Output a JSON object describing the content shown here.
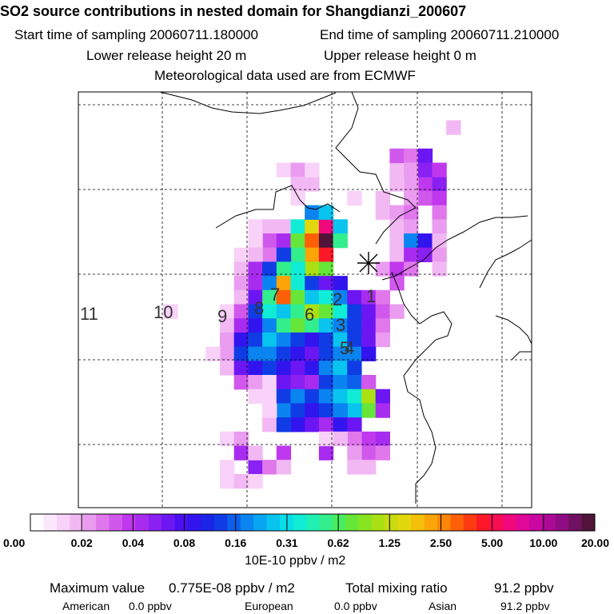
{
  "header": {
    "title": "SO2 source contributions in nested domain for Shangdianzi_200607",
    "start_label": "Start time of sampling 20060711.180000",
    "end_label": "End time of sampling 20060711.210000",
    "lower_label": "Lower release height   20 m",
    "upper_label": "Upper release height    0 m",
    "met_label": "Meteorological data used are from ECMWF"
  },
  "chart_data": {
    "type": "heatmap",
    "title": "SO2 source contributions in nested domain for Shangdianzi_200607",
    "colorbar": {
      "ticks": [
        "0.00",
        "0.02",
        "0.04",
        "0.08",
        "0.16",
        "0.31",
        "0.62",
        "1.25",
        "2.50",
        "5.00",
        "10.00",
        "20.00"
      ],
      "unit": "10E-10 ppbv / m2",
      "colors": [
        "#ffffff",
        "#fce8fc",
        "#f8d2f8",
        "#f2b8f4",
        "#ea9cf0",
        "#e078ec",
        "#d058ec",
        "#bf38ee",
        "#a82cf0",
        "#8a20f2",
        "#6c16f4",
        "#4a10f2",
        "#3214ee",
        "#1c24e8",
        "#103ce6",
        "#0c60ec",
        "#0a84f0",
        "#08a6f2",
        "#08c4ee",
        "#08dcea",
        "#10ecd6",
        "#20f0b4",
        "#32ee8c",
        "#48ec60",
        "#66e638",
        "#88e420",
        "#aae014",
        "#c8dc10",
        "#e2d80c",
        "#f4c00a",
        "#fca408",
        "#fe8608",
        "#fe6008",
        "#fe3a10",
        "#fc1828",
        "#f80c52",
        "#f0087c",
        "#e00898",
        "#c808a0",
        "#ac0a96",
        "#900c84",
        "#701060",
        "#501438"
      ]
    },
    "trajectory_labels": [
      "1",
      "2",
      "3",
      "4",
      "5",
      "6",
      "7",
      "8",
      "9",
      "10",
      "11"
    ],
    "station_marker": "Shangdianzi",
    "cells": [
      [
        5,
        14,
        2
      ],
      [
        5,
        15,
        4
      ],
      [
        6,
        15,
        3
      ],
      [
        6,
        16,
        3
      ],
      [
        7,
        15,
        2
      ],
      [
        5,
        16,
        2
      ],
      [
        6,
        24,
        7
      ],
      [
        6,
        25,
        9
      ],
      [
        7,
        24,
        6
      ],
      [
        7,
        25,
        7
      ],
      [
        7,
        23,
        4
      ],
      [
        6,
        23,
        4
      ],
      [
        7,
        21,
        3
      ],
      [
        8,
        21,
        3
      ],
      [
        8,
        22,
        4
      ],
      [
        7,
        19,
        2
      ],
      [
        8,
        23,
        5
      ],
      [
        9,
        22,
        3
      ],
      [
        10,
        22,
        3
      ],
      [
        11,
        22,
        3
      ],
      [
        9,
        23,
        4
      ],
      [
        10,
        23,
        16
      ],
      [
        11,
        23,
        8
      ],
      [
        10,
        24,
        12
      ],
      [
        11,
        24,
        9
      ],
      [
        12,
        21,
        4
      ],
      [
        12,
        22,
        7
      ],
      [
        13,
        22,
        6
      ],
      [
        12,
        23,
        5
      ],
      [
        9,
        12,
        2
      ],
      [
        9,
        13,
        3
      ],
      [
        9,
        14,
        3
      ],
      [
        10,
        13,
        6
      ],
      [
        10,
        14,
        8
      ],
      [
        11,
        13,
        5
      ],
      [
        10,
        12,
        2
      ],
      [
        9,
        15,
        20
      ],
      [
        9,
        16,
        28
      ],
      [
        9,
        17,
        36
      ],
      [
        10,
        15,
        24
      ],
      [
        10,
        16,
        32
      ],
      [
        10,
        17,
        42
      ],
      [
        11,
        16,
        30
      ],
      [
        11,
        17,
        34
      ],
      [
        11,
        15,
        22
      ],
      [
        9,
        18,
        18
      ],
      [
        10,
        18,
        22
      ],
      [
        8,
        16,
        16
      ],
      [
        8,
        17,
        18
      ],
      [
        12,
        16,
        26
      ],
      [
        12,
        17,
        24
      ],
      [
        12,
        15,
        20
      ],
      [
        11,
        14,
        14
      ],
      [
        11,
        12,
        3
      ],
      [
        11,
        11,
        2
      ],
      [
        12,
        11,
        3
      ],
      [
        12,
        12,
        8
      ],
      [
        12,
        13,
        14
      ],
      [
        12,
        14,
        22
      ],
      [
        13,
        11,
        4
      ],
      [
        13,
        12,
        8
      ],
      [
        13,
        13,
        16
      ],
      [
        13,
        14,
        30
      ],
      [
        13,
        15,
        20
      ],
      [
        13,
        16,
        14
      ],
      [
        13,
        17,
        10
      ],
      [
        13,
        18,
        12
      ],
      [
        14,
        11,
        3
      ],
      [
        14,
        12,
        10
      ],
      [
        14,
        13,
        22
      ],
      [
        14,
        14,
        32
      ],
      [
        14,
        15,
        24
      ],
      [
        14,
        16,
        18
      ],
      [
        14,
        17,
        20
      ],
      [
        14,
        18,
        16
      ],
      [
        14,
        19,
        10
      ],
      [
        14,
        20,
        8
      ],
      [
        14,
        21,
        5
      ],
      [
        15,
        10,
        2
      ],
      [
        15,
        11,
        6
      ],
      [
        15,
        12,
        14
      ],
      [
        15,
        13,
        20
      ],
      [
        15,
        14,
        18
      ],
      [
        15,
        15,
        22
      ],
      [
        15,
        16,
        26
      ],
      [
        15,
        17,
        24
      ],
      [
        15,
        18,
        20
      ],
      [
        15,
        19,
        14
      ],
      [
        15,
        20,
        10
      ],
      [
        15,
        21,
        6
      ],
      [
        15,
        22,
        4
      ],
      [
        16,
        10,
        3
      ],
      [
        16,
        11,
        8
      ],
      [
        16,
        12,
        12
      ],
      [
        16,
        13,
        16
      ],
      [
        16,
        14,
        22
      ],
      [
        16,
        15,
        24
      ],
      [
        16,
        16,
        22
      ],
      [
        16,
        17,
        18
      ],
      [
        16,
        18,
        16
      ],
      [
        16,
        19,
        14
      ],
      [
        16,
        20,
        10
      ],
      [
        16,
        21,
        5
      ],
      [
        17,
        10,
        4
      ],
      [
        17,
        11,
        12
      ],
      [
        17,
        12,
        14
      ],
      [
        17,
        13,
        18
      ],
      [
        17,
        14,
        16
      ],
      [
        17,
        15,
        14
      ],
      [
        17,
        16,
        12
      ],
      [
        17,
        17,
        14
      ],
      [
        17,
        18,
        18
      ],
      [
        17,
        19,
        14
      ],
      [
        17,
        20,
        10
      ],
      [
        17,
        21,
        4
      ],
      [
        18,
        10,
        4
      ],
      [
        18,
        11,
        14
      ],
      [
        18,
        12,
        16
      ],
      [
        18,
        13,
        16
      ],
      [
        18,
        14,
        14
      ],
      [
        18,
        15,
        12
      ],
      [
        18,
        16,
        10
      ],
      [
        18,
        17,
        14
      ],
      [
        18,
        18,
        16
      ],
      [
        18,
        19,
        16
      ],
      [
        18,
        20,
        12
      ],
      [
        19,
        10,
        3
      ],
      [
        19,
        11,
        10
      ],
      [
        19,
        12,
        12
      ],
      [
        19,
        13,
        14
      ],
      [
        19,
        14,
        12
      ],
      [
        19,
        15,
        10
      ],
      [
        19,
        16,
        12
      ],
      [
        19,
        17,
        16
      ],
      [
        19,
        18,
        18
      ],
      [
        19,
        19,
        14
      ],
      [
        20,
        11,
        6
      ],
      [
        20,
        12,
        4
      ],
      [
        20,
        13,
        2
      ],
      [
        20,
        14,
        10
      ],
      [
        20,
        15,
        9
      ],
      [
        20,
        16,
        8
      ],
      [
        20,
        17,
        14
      ],
      [
        20,
        18,
        16
      ],
      [
        20,
        19,
        15
      ],
      [
        20,
        20,
        6
      ],
      [
        21,
        12,
        2
      ],
      [
        21,
        13,
        2
      ],
      [
        21,
        14,
        14
      ],
      [
        21,
        15,
        16
      ],
      [
        21,
        16,
        14
      ],
      [
        21,
        17,
        16
      ],
      [
        21,
        18,
        18
      ],
      [
        21,
        19,
        20
      ],
      [
        21,
        20,
        26
      ],
      [
        21,
        21,
        10
      ],
      [
        22,
        20,
        24
      ],
      [
        22,
        19,
        18
      ],
      [
        22,
        21,
        8
      ],
      [
        22,
        14,
        16
      ],
      [
        22,
        15,
        14
      ],
      [
        22,
        16,
        12
      ],
      [
        22,
        17,
        14
      ],
      [
        22,
        18,
        16
      ],
      [
        23,
        14,
        14
      ],
      [
        23,
        15,
        12
      ],
      [
        23,
        16,
        10
      ],
      [
        23,
        17,
        8
      ],
      [
        23,
        18,
        12
      ],
      [
        23,
        19,
        10
      ],
      [
        24,
        20,
        7
      ],
      [
        24,
        21,
        8
      ],
      [
        25,
        20,
        6
      ],
      [
        25,
        21,
        5
      ],
      [
        24,
        19,
        5
      ],
      [
        25,
        19,
        4
      ],
      [
        26,
        19,
        3
      ],
      [
        26,
        20,
        3
      ],
      [
        24,
        18,
        3
      ],
      [
        23,
        13,
        3
      ],
      [
        23,
        14,
        14
      ],
      [
        22,
        13,
        2
      ],
      [
        24,
        10,
        2
      ],
      [
        24,
        11,
        4
      ],
      [
        25,
        11,
        8
      ],
      [
        26,
        12,
        9
      ],
      [
        25,
        12,
        3
      ],
      [
        26,
        13,
        5
      ],
      [
        25,
        14,
        7
      ],
      [
        26,
        14,
        3
      ],
      [
        25,
        17,
        8
      ],
      [
        24,
        17,
        2
      ],
      [
        26,
        10,
        2
      ],
      [
        27,
        10,
        2
      ],
      [
        27,
        11,
        3
      ],
      [
        27,
        12,
        2
      ],
      [
        15,
        6,
        2
      ],
      [
        18,
        9,
        2
      ],
      [
        6,
        22,
        3
      ],
      [
        5,
        22,
        3
      ],
      [
        4,
        22,
        6
      ],
      [
        4,
        23,
        5
      ],
      [
        5,
        23,
        4
      ],
      [
        4,
        24,
        10
      ],
      [
        5,
        24,
        9
      ],
      [
        5,
        25,
        7
      ],
      [
        2,
        26,
        3
      ],
      [
        8,
        25,
        5
      ],
      [
        9,
        25,
        4
      ],
      [
        10,
        25,
        3
      ],
      [
        11,
        25,
        4
      ],
      [
        12,
        25,
        3
      ]
    ]
  },
  "colorbar_unit": "10E-10 ppbv / m2",
  "footer": {
    "max_label": "Maximum value",
    "max_value": "0.775E-08 ppbv / m2",
    "total_label": "Total mixing ratio",
    "total_value": "91.2 ppbv",
    "american_label": "American",
    "american_value": "0.0 ppbv",
    "european_label": "European",
    "european_value": "0.0 ppbv",
    "asian_label": "Asian",
    "asian_value": "91.2 ppbv"
  }
}
